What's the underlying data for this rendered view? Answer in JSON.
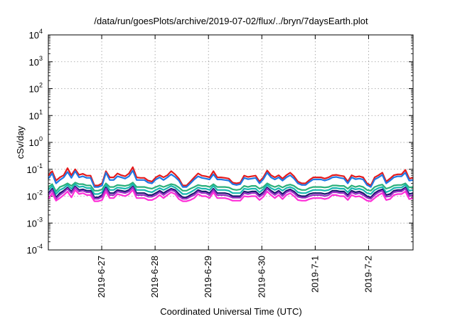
{
  "chart_data": {
    "type": "line",
    "title": "/data/run/goesPlots/archive/2019-07-02/flux/../bryn/7daysEarth.plot",
    "xlabel": "Coordinated Universal Time (UTC)",
    "ylabel": "cSv/day",
    "x_ticks": [
      "2019-6-27",
      "2019-6-28",
      "2019-6-29",
      "2019-6-30",
      "2019-7-1",
      "2019-7-2"
    ],
    "x_range": [
      "2019-06-26T00:00",
      "2019-07-02T20:00"
    ],
    "y_scale": "log",
    "ylim": [
      0.0001,
      10000
    ],
    "y_ticks": [
      {
        "base": "10",
        "exp": "4"
      },
      {
        "base": "10",
        "exp": "3"
      },
      {
        "base": "10",
        "exp": "2"
      },
      {
        "base": "10",
        "exp": "1"
      },
      {
        "base": "10",
        "exp": "0"
      },
      {
        "base": "10",
        "exp": "-1"
      },
      {
        "base": "10",
        "exp": "-2"
      },
      {
        "base": "10",
        "exp": "-3"
      },
      {
        "base": "10",
        "exp": "-4"
      }
    ],
    "grid": true,
    "series": [
      {
        "color": "#e41a1c",
        "values": [
          0.058,
          0.085,
          0.038,
          0.05,
          0.06,
          0.11,
          0.06,
          0.1,
          0.062,
          0.068,
          0.058,
          0.058,
          0.025,
          0.025,
          0.03,
          0.085,
          0.05,
          0.05,
          0.07,
          0.06,
          0.055,
          0.07,
          0.12,
          0.05,
          0.048,
          0.048,
          0.038,
          0.035,
          0.05,
          0.06,
          0.05,
          0.06,
          0.085,
          0.065,
          0.045,
          0.025,
          0.025,
          0.035,
          0.05,
          0.07,
          0.058,
          0.055,
          0.05,
          0.085,
          0.05,
          0.05,
          0.048,
          0.045,
          0.032,
          0.03,
          0.032,
          0.058,
          0.052,
          0.055,
          0.058,
          0.035,
          0.05,
          0.09,
          0.06,
          0.05,
          0.06,
          0.045,
          0.06,
          0.075,
          0.055,
          0.035,
          0.03,
          0.03,
          0.04,
          0.05,
          0.05,
          0.05,
          0.045,
          0.05,
          0.06,
          0.062,
          0.058,
          0.055,
          0.035,
          0.06,
          0.052,
          0.055,
          0.05,
          0.03,
          0.025,
          0.05,
          0.06,
          0.075,
          0.035,
          0.045,
          0.06,
          0.065,
          0.065,
          0.095,
          0.045,
          0.048
        ]
      },
      {
        "color": "#1f78e4",
        "values": [
          0.045,
          0.07,
          0.03,
          0.04,
          0.05,
          0.08,
          0.048,
          0.085,
          0.05,
          0.055,
          0.048,
          0.048,
          0.022,
          0.022,
          0.025,
          0.075,
          0.04,
          0.04,
          0.055,
          0.05,
          0.045,
          0.055,
          0.09,
          0.04,
          0.04,
          0.04,
          0.032,
          0.03,
          0.042,
          0.05,
          0.04,
          0.05,
          0.065,
          0.052,
          0.038,
          0.022,
          0.022,
          0.03,
          0.042,
          0.055,
          0.048,
          0.045,
          0.042,
          0.065,
          0.042,
          0.042,
          0.04,
          0.038,
          0.028,
          0.026,
          0.028,
          0.048,
          0.043,
          0.045,
          0.048,
          0.03,
          0.043,
          0.075,
          0.05,
          0.042,
          0.05,
          0.038,
          0.05,
          0.06,
          0.045,
          0.03,
          0.026,
          0.026,
          0.034,
          0.042,
          0.042,
          0.042,
          0.038,
          0.042,
          0.05,
          0.052,
          0.048,
          0.045,
          0.03,
          0.05,
          0.043,
          0.045,
          0.042,
          0.026,
          0.022,
          0.042,
          0.05,
          0.062,
          0.03,
          0.038,
          0.05,
          0.055,
          0.055,
          0.075,
          0.038,
          0.04
        ]
      },
      {
        "color": "#2ab07a",
        "values": [
          0.022,
          0.028,
          0.015,
          0.022,
          0.025,
          0.03,
          0.024,
          0.032,
          0.028,
          0.028,
          0.025,
          0.025,
          0.016,
          0.016,
          0.018,
          0.03,
          0.022,
          0.022,
          0.026,
          0.025,
          0.024,
          0.026,
          0.032,
          0.022,
          0.022,
          0.022,
          0.02,
          0.019,
          0.022,
          0.025,
          0.022,
          0.025,
          0.028,
          0.026,
          0.021,
          0.016,
          0.016,
          0.019,
          0.022,
          0.026,
          0.024,
          0.024,
          0.022,
          0.028,
          0.022,
          0.022,
          0.022,
          0.021,
          0.018,
          0.017,
          0.018,
          0.024,
          0.022,
          0.024,
          0.024,
          0.019,
          0.022,
          0.03,
          0.025,
          0.022,
          0.025,
          0.021,
          0.025,
          0.027,
          0.024,
          0.019,
          0.017,
          0.017,
          0.02,
          0.022,
          0.022,
          0.022,
          0.021,
          0.022,
          0.025,
          0.025,
          0.024,
          0.024,
          0.019,
          0.025,
          0.022,
          0.024,
          0.022,
          0.017,
          0.016,
          0.022,
          0.025,
          0.027,
          0.019,
          0.021,
          0.025,
          0.026,
          0.026,
          0.03,
          0.021,
          0.022
        ]
      },
      {
        "color": "#17b6b0",
        "values": [
          0.017,
          0.024,
          0.012,
          0.017,
          0.02,
          0.026,
          0.019,
          0.028,
          0.022,
          0.023,
          0.02,
          0.02,
          0.012,
          0.012,
          0.014,
          0.026,
          0.017,
          0.017,
          0.021,
          0.02,
          0.019,
          0.021,
          0.028,
          0.017,
          0.017,
          0.017,
          0.015,
          0.014,
          0.017,
          0.02,
          0.017,
          0.02,
          0.024,
          0.021,
          0.016,
          0.012,
          0.012,
          0.014,
          0.017,
          0.021,
          0.019,
          0.019,
          0.017,
          0.024,
          0.017,
          0.017,
          0.017,
          0.016,
          0.013,
          0.013,
          0.013,
          0.019,
          0.018,
          0.019,
          0.019,
          0.014,
          0.018,
          0.026,
          0.02,
          0.017,
          0.02,
          0.016,
          0.02,
          0.022,
          0.019,
          0.014,
          0.013,
          0.013,
          0.015,
          0.017,
          0.017,
          0.017,
          0.016,
          0.017,
          0.02,
          0.02,
          0.019,
          0.019,
          0.014,
          0.02,
          0.018,
          0.019,
          0.017,
          0.013,
          0.012,
          0.017,
          0.02,
          0.022,
          0.014,
          0.016,
          0.02,
          0.021,
          0.021,
          0.026,
          0.016,
          0.017
        ]
      },
      {
        "color": "#1a1a6e",
        "values": [
          0.013,
          0.019,
          0.009,
          0.013,
          0.016,
          0.021,
          0.015,
          0.023,
          0.017,
          0.018,
          0.016,
          0.016,
          0.009,
          0.009,
          0.011,
          0.021,
          0.013,
          0.013,
          0.017,
          0.016,
          0.015,
          0.017,
          0.023,
          0.013,
          0.013,
          0.013,
          0.011,
          0.011,
          0.013,
          0.016,
          0.013,
          0.016,
          0.019,
          0.017,
          0.012,
          0.009,
          0.009,
          0.011,
          0.013,
          0.017,
          0.015,
          0.015,
          0.013,
          0.019,
          0.013,
          0.013,
          0.013,
          0.012,
          0.01,
          0.01,
          0.01,
          0.015,
          0.014,
          0.015,
          0.015,
          0.011,
          0.014,
          0.021,
          0.016,
          0.013,
          0.016,
          0.012,
          0.016,
          0.018,
          0.015,
          0.011,
          0.01,
          0.01,
          0.012,
          0.013,
          0.013,
          0.013,
          0.012,
          0.013,
          0.016,
          0.016,
          0.015,
          0.015,
          0.011,
          0.016,
          0.014,
          0.015,
          0.013,
          0.01,
          0.009,
          0.013,
          0.016,
          0.018,
          0.011,
          0.012,
          0.016,
          0.017,
          0.017,
          0.021,
          0.012,
          0.013
        ]
      },
      {
        "color": "#9a2fc4",
        "values": [
          0.011,
          0.017,
          0.008,
          0.011,
          0.014,
          0.019,
          0.013,
          0.021,
          0.015,
          0.016,
          0.014,
          0.014,
          0.008,
          0.008,
          0.0095,
          0.019,
          0.011,
          0.011,
          0.015,
          0.014,
          0.013,
          0.015,
          0.021,
          0.011,
          0.011,
          0.011,
          0.0095,
          0.0095,
          0.011,
          0.014,
          0.011,
          0.014,
          0.017,
          0.015,
          0.01,
          0.008,
          0.008,
          0.0095,
          0.011,
          0.015,
          0.013,
          0.013,
          0.011,
          0.017,
          0.011,
          0.011,
          0.011,
          0.01,
          0.0088,
          0.0088,
          0.0088,
          0.013,
          0.012,
          0.013,
          0.013,
          0.0095,
          0.012,
          0.019,
          0.014,
          0.011,
          0.014,
          0.01,
          0.014,
          0.016,
          0.013,
          0.0095,
          0.0088,
          0.0088,
          0.01,
          0.011,
          0.011,
          0.011,
          0.01,
          0.011,
          0.014,
          0.014,
          0.013,
          0.013,
          0.0095,
          0.014,
          0.012,
          0.013,
          0.011,
          0.0088,
          0.008,
          0.011,
          0.014,
          0.016,
          0.0095,
          0.01,
          0.014,
          0.015,
          0.015,
          0.019,
          0.01,
          0.011
        ]
      },
      {
        "color": "#ff2fd8",
        "values": [
          0.008,
          0.013,
          0.0068,
          0.0085,
          0.011,
          0.015,
          0.009,
          0.017,
          0.012,
          0.013,
          0.011,
          0.011,
          0.0065,
          0.0065,
          0.0072,
          0.015,
          0.0085,
          0.0085,
          0.012,
          0.011,
          0.01,
          0.012,
          0.017,
          0.0085,
          0.0085,
          0.0085,
          0.0072,
          0.0072,
          0.0085,
          0.011,
          0.0085,
          0.011,
          0.014,
          0.012,
          0.0078,
          0.0065,
          0.0065,
          0.0072,
          0.0085,
          0.012,
          0.01,
          0.01,
          0.0085,
          0.014,
          0.0085,
          0.0085,
          0.0085,
          0.0078,
          0.0068,
          0.0068,
          0.0068,
          0.01,
          0.0095,
          0.01,
          0.01,
          0.0072,
          0.0095,
          0.015,
          0.011,
          0.0085,
          0.011,
          0.0078,
          0.011,
          0.013,
          0.01,
          0.0072,
          0.0068,
          0.0068,
          0.0078,
          0.0085,
          0.0085,
          0.0085,
          0.0078,
          0.0085,
          0.011,
          0.011,
          0.01,
          0.01,
          0.0072,
          0.011,
          0.0095,
          0.01,
          0.0085,
          0.0068,
          0.0065,
          0.0085,
          0.011,
          0.013,
          0.0072,
          0.0078,
          0.011,
          0.012,
          0.012,
          0.015,
          0.0078,
          0.0085
        ]
      }
    ]
  }
}
